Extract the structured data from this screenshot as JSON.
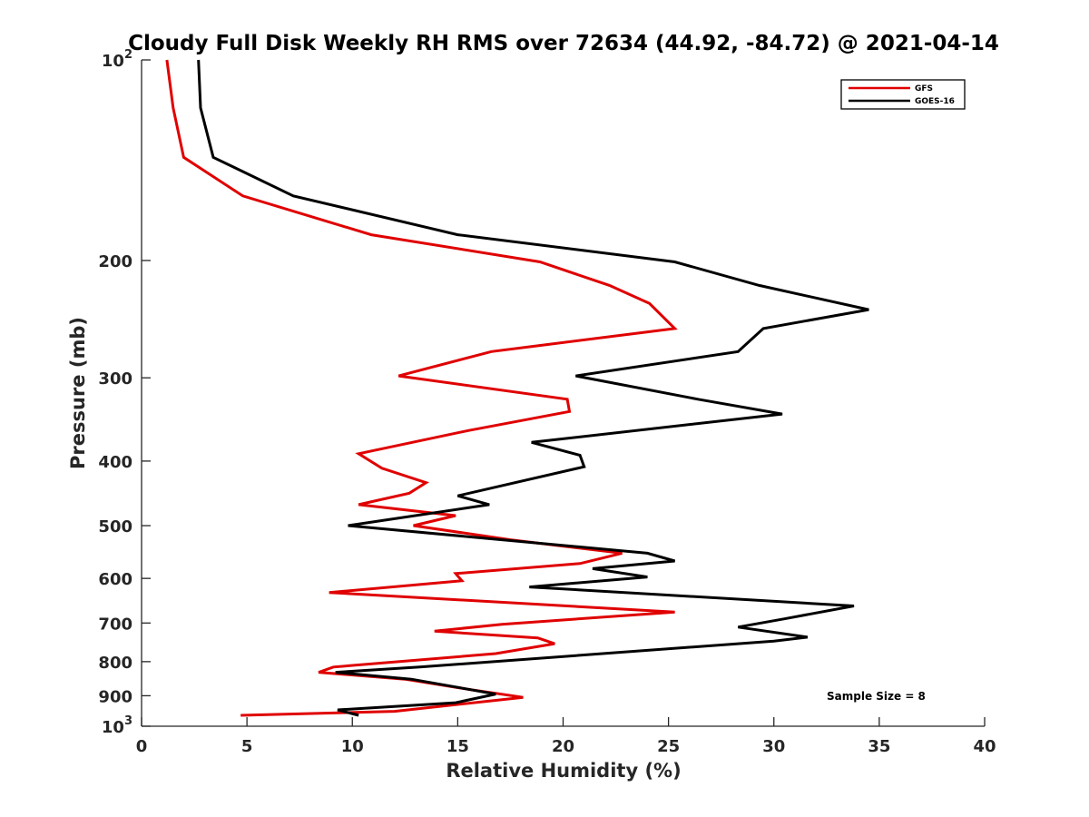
{
  "chart_data": {
    "type": "line",
    "title": "Cloudy Full Disk Weekly RH RMS over 72634 (44.92, -84.72) @ 2021-04-14",
    "xlabel": "Relative Humidity (%)",
    "ylabel": "Pressure (mb)",
    "xlim": [
      0,
      40
    ],
    "ylim": [
      100,
      1000
    ],
    "y_scale": "log",
    "y_reversed": true,
    "x_ticks": [
      "0",
      "5",
      "10",
      "15",
      "20",
      "25",
      "30",
      "35",
      "40"
    ],
    "y_ticks": [
      {
        "value": 100,
        "base": "10",
        "exp": "2"
      },
      {
        "value": 200,
        "label": "200"
      },
      {
        "value": 300,
        "label": "300"
      },
      {
        "value": 400,
        "label": "400"
      },
      {
        "value": 500,
        "label": "500"
      },
      {
        "value": 600,
        "label": "600"
      },
      {
        "value": 700,
        "label": "700"
      },
      {
        "value": 800,
        "label": "800"
      },
      {
        "value": 900,
        "label": "900"
      },
      {
        "value": 1000,
        "base": "10",
        "exp": "3"
      }
    ],
    "grid": false,
    "legend_position": "top-right",
    "annotation": "Sample Size = 8",
    "series": [
      {
        "name": "GFS",
        "color": "#e00000",
        "points": [
          [
            1.2,
            100
          ],
          [
            1.5,
            118
          ],
          [
            2.0,
            140
          ],
          [
            4.8,
            160
          ],
          [
            10.9,
            183
          ],
          [
            18.9,
            201
          ],
          [
            22.2,
            218
          ],
          [
            24.1,
            232
          ],
          [
            25.3,
            253
          ],
          [
            16.6,
            274
          ],
          [
            12.2,
            298
          ],
          [
            20.2,
            323
          ],
          [
            20.3,
            337
          ],
          [
            15.5,
            360
          ],
          [
            10.3,
            390
          ],
          [
            11.4,
            410
          ],
          [
            13.5,
            431
          ],
          [
            12.7,
            447
          ],
          [
            10.3,
            465
          ],
          [
            14.9,
            483
          ],
          [
            12.9,
            500
          ],
          [
            17.5,
            525
          ],
          [
            22.8,
            550
          ],
          [
            20.8,
            570
          ],
          [
            14.9,
            590
          ],
          [
            15.2,
            605
          ],
          [
            8.9,
            630
          ],
          [
            25.3,
            674
          ],
          [
            17.1,
            703
          ],
          [
            13.9,
            720
          ],
          [
            18.8,
            737
          ],
          [
            19.6,
            752
          ],
          [
            16.8,
            778
          ],
          [
            9.1,
            815
          ],
          [
            8.4,
            830
          ],
          [
            12.5,
            850
          ],
          [
            15.5,
            880
          ],
          [
            18.1,
            905
          ],
          [
            12.0,
            950
          ],
          [
            4.7,
            963
          ]
        ]
      },
      {
        "name": "GOES-16",
        "color": "#000000",
        "points": [
          [
            2.7,
            100
          ],
          [
            2.8,
            118
          ],
          [
            3.4,
            140
          ],
          [
            7.2,
            160
          ],
          [
            15.0,
            183
          ],
          [
            25.3,
            201
          ],
          [
            29.3,
            218
          ],
          [
            34.5,
            237
          ],
          [
            29.5,
            253
          ],
          [
            28.3,
            274
          ],
          [
            20.6,
            298
          ],
          [
            26.4,
            323
          ],
          [
            30.4,
            340
          ],
          [
            18.5,
            375
          ],
          [
            20.8,
            392
          ],
          [
            21.0,
            408
          ],
          [
            15.0,
            451
          ],
          [
            16.5,
            465
          ],
          [
            9.8,
            500
          ],
          [
            24.0,
            550
          ],
          [
            25.3,
            565
          ],
          [
            21.4,
            580
          ],
          [
            24.0,
            597
          ],
          [
            18.4,
            618
          ],
          [
            33.8,
            660
          ],
          [
            30.5,
            690
          ],
          [
            28.3,
            710
          ],
          [
            31.6,
            735
          ],
          [
            30.0,
            745
          ],
          [
            13.2,
            815
          ],
          [
            9.2,
            830
          ],
          [
            12.8,
            850
          ],
          [
            16.8,
            895
          ],
          [
            14.9,
            922
          ],
          [
            9.3,
            945
          ],
          [
            10.3,
            963
          ]
        ]
      }
    ]
  }
}
